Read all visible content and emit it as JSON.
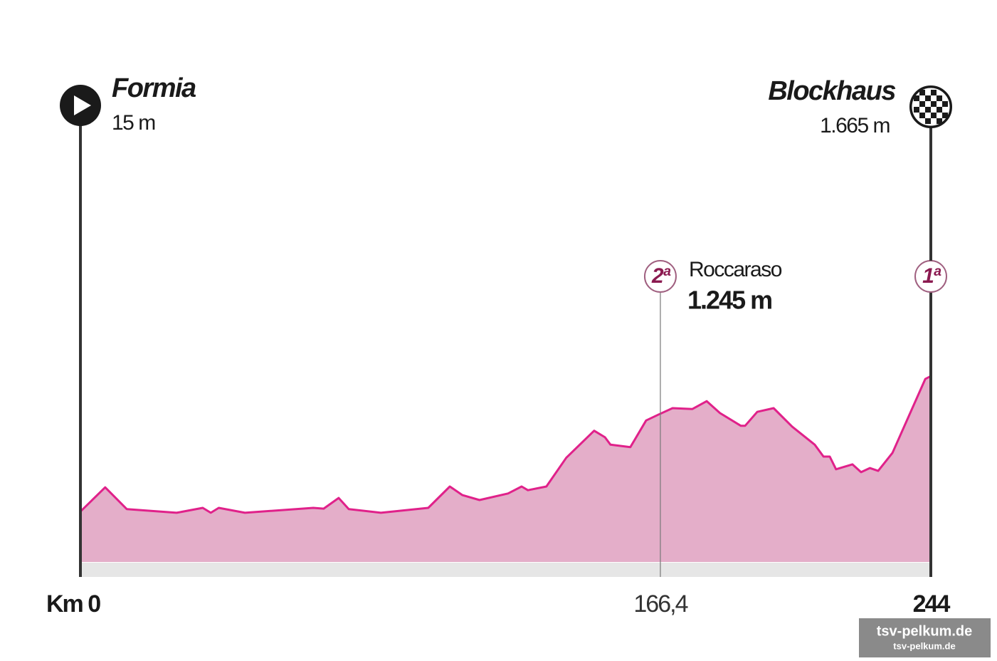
{
  "chart_data": {
    "type": "area",
    "x": [
      0,
      7.1,
      13.3,
      27.6,
      35.1,
      37.4,
      39.7,
      47.2,
      66.8,
      69.8,
      74.1,
      77,
      86.2,
      99.8,
      106,
      109.6,
      114.5,
      122.7,
      126.6,
      128.4,
      133.7,
      139.4,
      147.4,
      150.5,
      152.1,
      157.8,
      162.3,
      165.8,
      169.9,
      175.6,
      179.7,
      183.5,
      189.5,
      190.7,
      194.2,
      198.9,
      204.2,
      210.7,
      213.2,
      215,
      216.8,
      221.5,
      224,
      226.5,
      228.9,
      233,
      242.4,
      244
    ],
    "values": [
      15,
      310,
      45,
      0,
      60,
      0,
      60,
      0,
      60,
      50,
      180,
      45,
      0,
      60,
      320,
      215,
      155,
      235,
      320,
      275,
      320,
      670,
      1000,
      920,
      830,
      800,
      1125,
      1195,
      1275,
      1265,
      1360,
      1215,
      1060,
      1060,
      1230,
      1275,
      1050,
      830,
      685,
      685,
      530,
      590,
      495,
      545,
      510,
      730,
      1630,
      1665
    ],
    "color": "#e0218a",
    "fill": "#e4aec9",
    "xlim": [
      0,
      244
    ],
    "ylim": [
      -600,
      1900
    ],
    "xticks": [
      {
        "value": 0,
        "label": "Km 0"
      },
      {
        "value": 166.4,
        "label": "166,4"
      },
      244
    ],
    "start": {
      "name": "Formia",
      "elevation": "15 m"
    },
    "finish": {
      "name": "Blockhaus",
      "elevation": "1.665 m"
    },
    "climbs": [
      {
        "category": "2ª",
        "name": "Roccaraso",
        "elevation": "1.245 m",
        "km": 166.4
      },
      {
        "category": "1ª",
        "km": 244
      }
    ],
    "watermark": [
      "tsv-pelkum.de",
      "tsv-pelkum.de"
    ]
  }
}
